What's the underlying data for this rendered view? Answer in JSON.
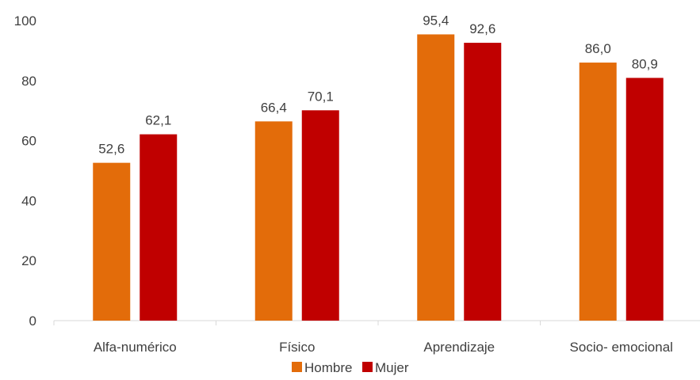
{
  "chart_data": {
    "type": "bar",
    "categories": [
      "Alfa-numérico",
      "Físico",
      "Aprendizaje",
      "Socio- emocional"
    ],
    "series": [
      {
        "name": "Hombre",
        "color": "#E36C0A",
        "values": [
          52.6,
          66.4,
          95.4,
          86.0
        ],
        "labels": [
          "52,6",
          "66,4",
          "95,4",
          "86,0"
        ]
      },
      {
        "name": "Mujer",
        "color": "#C00000",
        "values": [
          62.1,
          70.1,
          92.6,
          80.9
        ],
        "labels": [
          "62,1",
          "70,1",
          "92,6",
          "80,9"
        ]
      }
    ],
    "ylim": [
      0,
      100
    ],
    "yticks": [
      "0",
      "20",
      "40",
      "60",
      "80",
      "100"
    ],
    "grid": false,
    "legend_position": "bottom"
  }
}
